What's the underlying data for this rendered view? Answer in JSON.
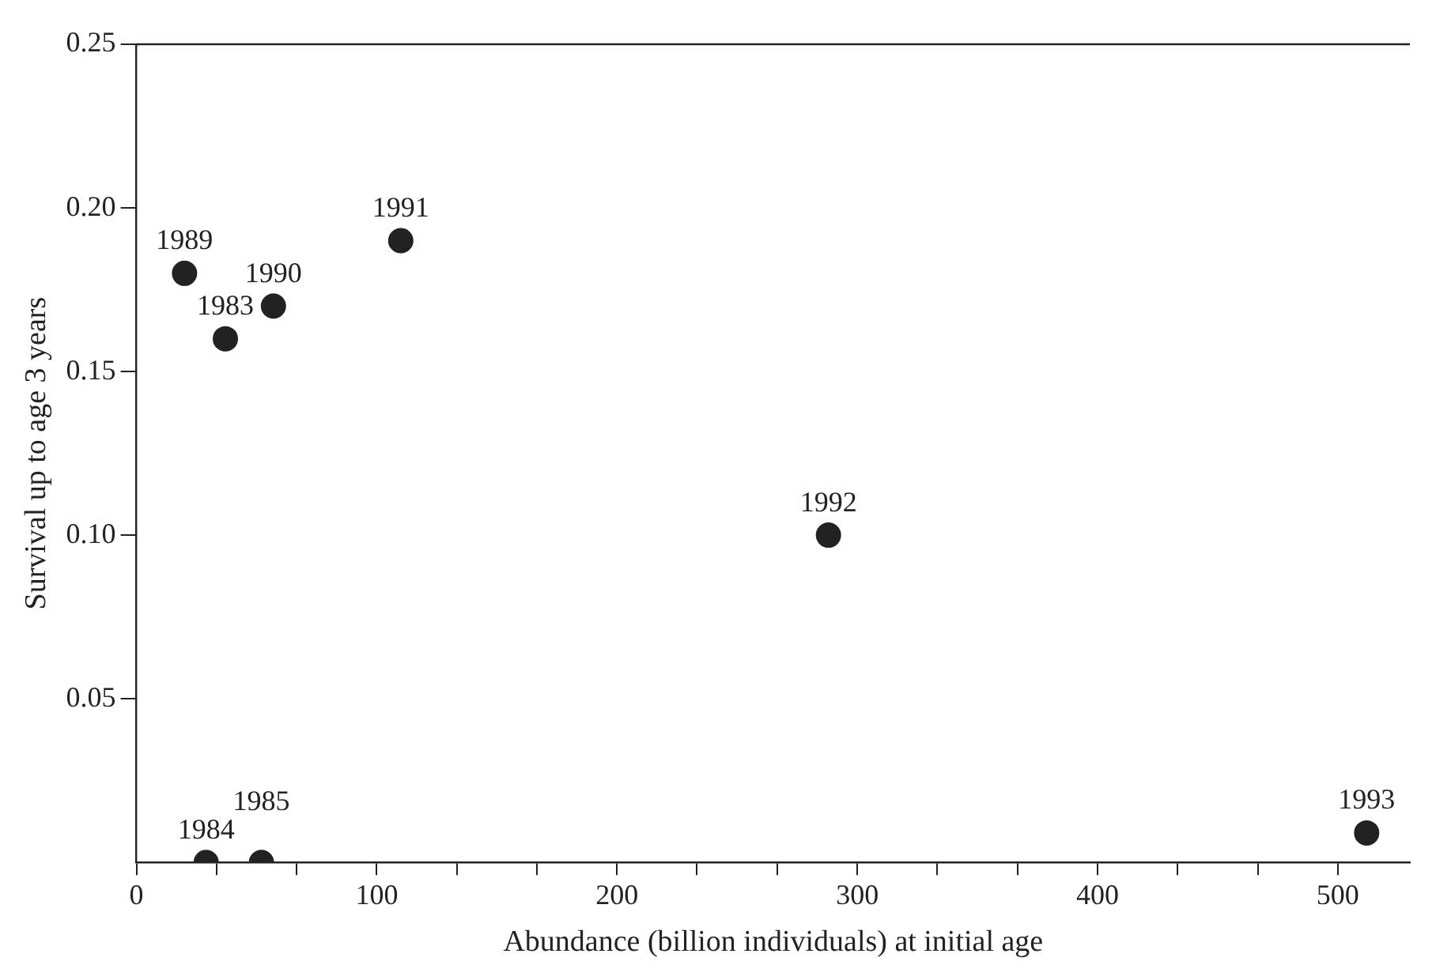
{
  "chart_data": {
    "type": "scatter",
    "xlabel": "Abundance (billion individuals) at initial age",
    "ylabel": "Survival up to age 3 years",
    "x": [
      20,
      37,
      57,
      110,
      288,
      29,
      52,
      512
    ],
    "values": [
      0.18,
      0.16,
      0.17,
      0.19,
      0.1,
      0,
      0,
      0.009
    ],
    "color": "#222222",
    "marker": "circle",
    "grid": false,
    "legend": false,
    "xlim": [
      0,
      530
    ],
    "ylim": [
      0,
      0.25
    ],
    "xticks": [
      0,
      {
        "value": 33.3,
        "label": null
      },
      {
        "value": 66.7,
        "label": null
      },
      100,
      {
        "value": 133.3,
        "label": null
      },
      {
        "value": 166.7,
        "label": null
      },
      200,
      {
        "value": 233.3,
        "label": null
      },
      {
        "value": 266.7,
        "label": null
      },
      300,
      {
        "value": 333.3,
        "label": null
      },
      {
        "value": 366.7,
        "label": null
      },
      400,
      {
        "value": 433.3,
        "label": null
      },
      {
        "value": 466.7,
        "label": null
      },
      500
    ],
    "yticks": [
      {
        "value": 0.05,
        "label": "0.05"
      },
      {
        "value": 0.1,
        "label": "0.10"
      },
      {
        "value": 0.15,
        "label": "0.15"
      },
      {
        "value": 0.2,
        "label": "0.20"
      },
      {
        "value": 0.25,
        "label": "0.25"
      }
    ],
    "annotations": [
      {
        "text": "1989",
        "x": 20,
        "y": 0.18
      },
      {
        "text": "1983",
        "x": 37,
        "y": 0.16
      },
      {
        "text": "1990",
        "x": 57,
        "y": 0.17
      },
      {
        "text": "1991",
        "x": 110,
        "y": 0.19
      },
      {
        "text": "1992",
        "x": 288,
        "y": 0.1
      },
      {
        "text": "1984",
        "x": 29,
        "y": 0
      },
      {
        "text": "1985",
        "x": 52,
        "y": 0
      },
      {
        "text": "1993",
        "x": 512,
        "y": 0.009
      }
    ]
  }
}
